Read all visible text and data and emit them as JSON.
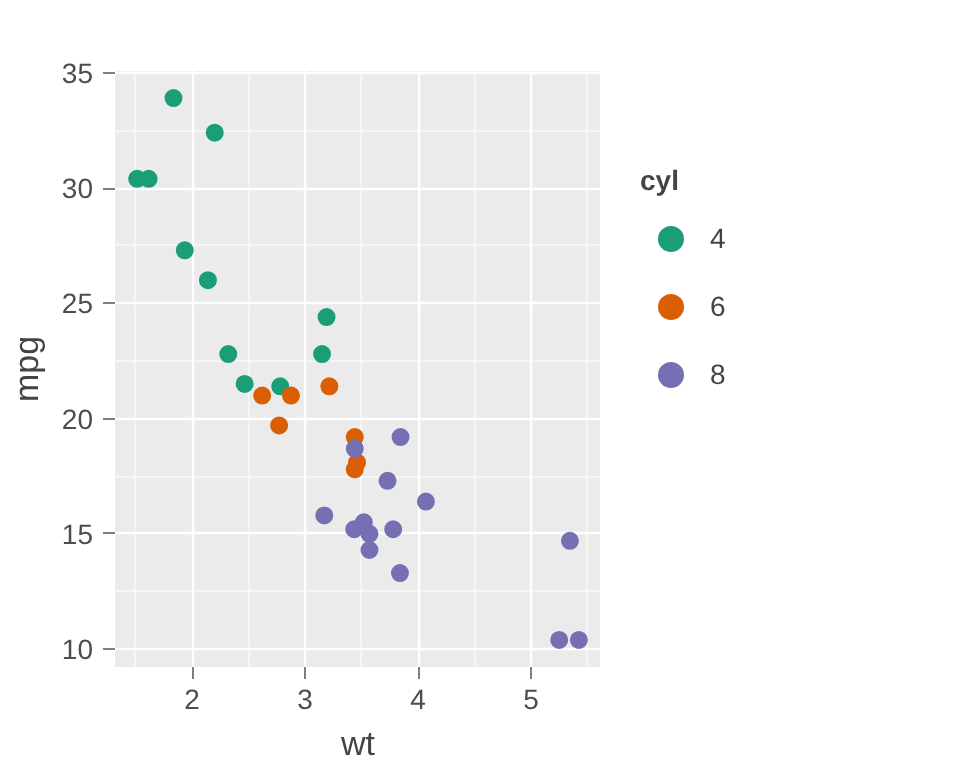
{
  "chart_data": {
    "type": "scatter",
    "xlabel": "wt",
    "ylabel": "mpg",
    "legend_title": "cyl",
    "legend": "right",
    "grid": true,
    "marker": "circle",
    "xlim": [
      1.317,
      5.62
    ],
    "ylim": [
      9.225,
      35.075
    ],
    "xticks": [
      2,
      3,
      4,
      5
    ],
    "yticks": [
      10,
      15,
      20,
      25,
      30,
      35
    ],
    "series": [
      {
        "name": "4",
        "color": "#1b9e77",
        "x": [
          2.32,
          3.19,
          3.15,
          2.2,
          1.615,
          1.835,
          2.465,
          1.935,
          2.14,
          1.513,
          2.78
        ],
        "values": [
          22.8,
          24.4,
          22.8,
          32.4,
          30.4,
          33.9,
          21.5,
          27.3,
          26.0,
          30.4,
          21.4
        ]
      },
      {
        "name": "6",
        "color": "#d95f02",
        "x": [
          2.62,
          2.875,
          3.215,
          3.46,
          3.44,
          3.44,
          2.77
        ],
        "values": [
          21.0,
          21.0,
          21.4,
          18.1,
          19.2,
          17.8,
          19.7
        ]
      },
      {
        "name": "8",
        "color": "#7570b3",
        "x": [
          3.44,
          3.57,
          4.07,
          3.73,
          3.78,
          5.25,
          5.424,
          5.345,
          3.52,
          3.435,
          3.84,
          3.845,
          3.17,
          3.57
        ],
        "values": [
          18.7,
          14.3,
          16.4,
          17.3,
          15.2,
          10.4,
          10.4,
          14.7,
          15.5,
          15.2,
          13.3,
          19.2,
          15.8,
          15.0
        ]
      }
    ]
  }
}
